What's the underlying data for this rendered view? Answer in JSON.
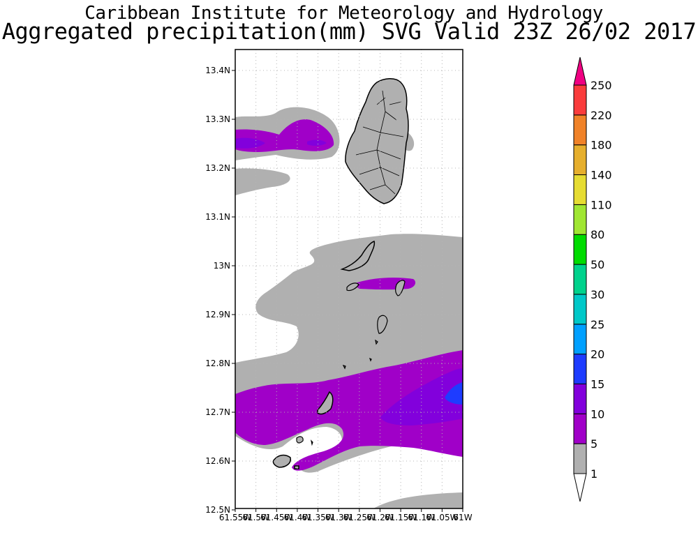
{
  "title": {
    "line1": "Caribbean Institute for Meteorology and Hydrology",
    "line2": "Aggregated precipitation(mm) SVG Valid 23Z 26/02 2017"
  },
  "map": {
    "lat_labels": [
      "13.4N",
      "13.3N",
      "13.2N",
      "13.1N",
      "13N",
      "12.9N",
      "12.8N",
      "12.7N",
      "12.6N",
      "12.5N"
    ],
    "lon_labels": [
      "61.55W",
      "61.5W",
      "61.45W",
      "61.4W",
      "61.35W",
      "61.3W",
      "61.25W",
      "61.2W",
      "61.15W",
      "61.1W",
      "61.05W",
      "61W"
    ],
    "grid": true
  },
  "colorbar": {
    "levels": [
      "1",
      "5",
      "10",
      "15",
      "20",
      "25",
      "30",
      "50",
      "80",
      "110",
      "140",
      "180",
      "220",
      "250"
    ],
    "colors": [
      "#b0b0b0",
      "#a000c8",
      "#8200dc",
      "#1e3cff",
      "#00a0ff",
      "#00c8c8",
      "#00d28c",
      "#00dc00",
      "#a0e632",
      "#e6dc32",
      "#e6af2d",
      "#f08228",
      "#fa3c3c",
      "#f00082"
    ]
  }
}
